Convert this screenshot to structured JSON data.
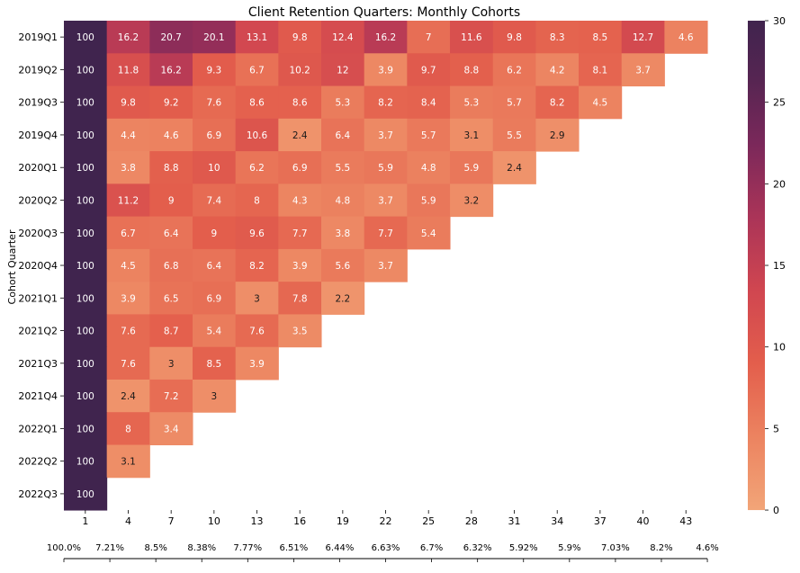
{
  "chart_data": {
    "type": "heatmap",
    "title": "Client Retention Quarters: Monthly Cohorts",
    "ylabel": "Cohort Quarter",
    "xlabel": "",
    "x_categories": [
      "1",
      "4",
      "7",
      "10",
      "13",
      "16",
      "19",
      "22",
      "25",
      "28",
      "31",
      "34",
      "37",
      "40",
      "43"
    ],
    "y_categories": [
      "2019Q1",
      "2019Q2",
      "2019Q3",
      "2019Q4",
      "2020Q1",
      "2020Q2",
      "2020Q3",
      "2020Q4",
      "2021Q1",
      "2021Q2",
      "2021Q3",
      "2021Q4",
      "2022Q1",
      "2022Q2",
      "2022Q3"
    ],
    "values": [
      [
        100,
        16.2,
        20.7,
        20.1,
        13.1,
        9.8,
        12.4,
        16.2,
        7,
        11.6,
        9.8,
        8.3,
        8.5,
        12.7,
        4.6
      ],
      [
        100,
        11.8,
        16.2,
        9.3,
        6.7,
        10.2,
        12,
        3.9,
        9.7,
        8.8,
        6.2,
        4.2,
        8.1,
        3.7
      ],
      [
        100,
        9.8,
        9.2,
        7.6,
        8.6,
        8.6,
        5.3,
        8.2,
        8.4,
        5.3,
        5.7,
        8.2,
        4.5
      ],
      [
        100,
        4.4,
        4.6,
        6.9,
        10.6,
        2.4,
        6.4,
        3.7,
        5.7,
        3.1,
        5.5,
        2.9
      ],
      [
        100,
        3.8,
        8.8,
        10,
        6.2,
        6.9,
        5.5,
        5.9,
        4.8,
        5.9,
        2.4
      ],
      [
        100,
        11.2,
        9,
        7.4,
        8,
        4.3,
        4.8,
        3.7,
        5.9,
        3.2
      ],
      [
        100,
        6.7,
        6.4,
        9,
        9.6,
        7.7,
        3.8,
        7.7,
        5.4
      ],
      [
        100,
        4.5,
        6.8,
        6.4,
        8.2,
        3.9,
        5.6,
        3.7
      ],
      [
        100,
        3.9,
        6.5,
        6.9,
        3,
        7.8,
        2.2
      ],
      [
        100,
        7.6,
        8.7,
        5.4,
        7.6,
        3.5
      ],
      [
        100,
        7.6,
        3,
        8.5,
        3.9
      ],
      [
        100,
        2.4,
        7.2,
        3
      ],
      [
        100,
        8,
        3.4
      ],
      [
        100,
        3.1
      ],
      [
        100
      ]
    ],
    "colorbar": {
      "min": 0,
      "max": 30,
      "ticks": [
        0,
        5,
        10,
        15,
        20,
        25,
        30
      ],
      "colormap": "flare"
    },
    "averages": [
      "100.0%",
      "7.21%",
      "8.5%",
      "8.38%",
      "7.77%",
      "6.51%",
      "6.44%",
      "6.63%",
      "6.7%",
      "6.32%",
      "5.92%",
      "5.9%",
      "7.03%",
      "8.2%",
      "4.6%"
    ],
    "colors": {
      "low": "#f2a578",
      "mid": "#e05b4c",
      "high": "#40244e"
    }
  }
}
